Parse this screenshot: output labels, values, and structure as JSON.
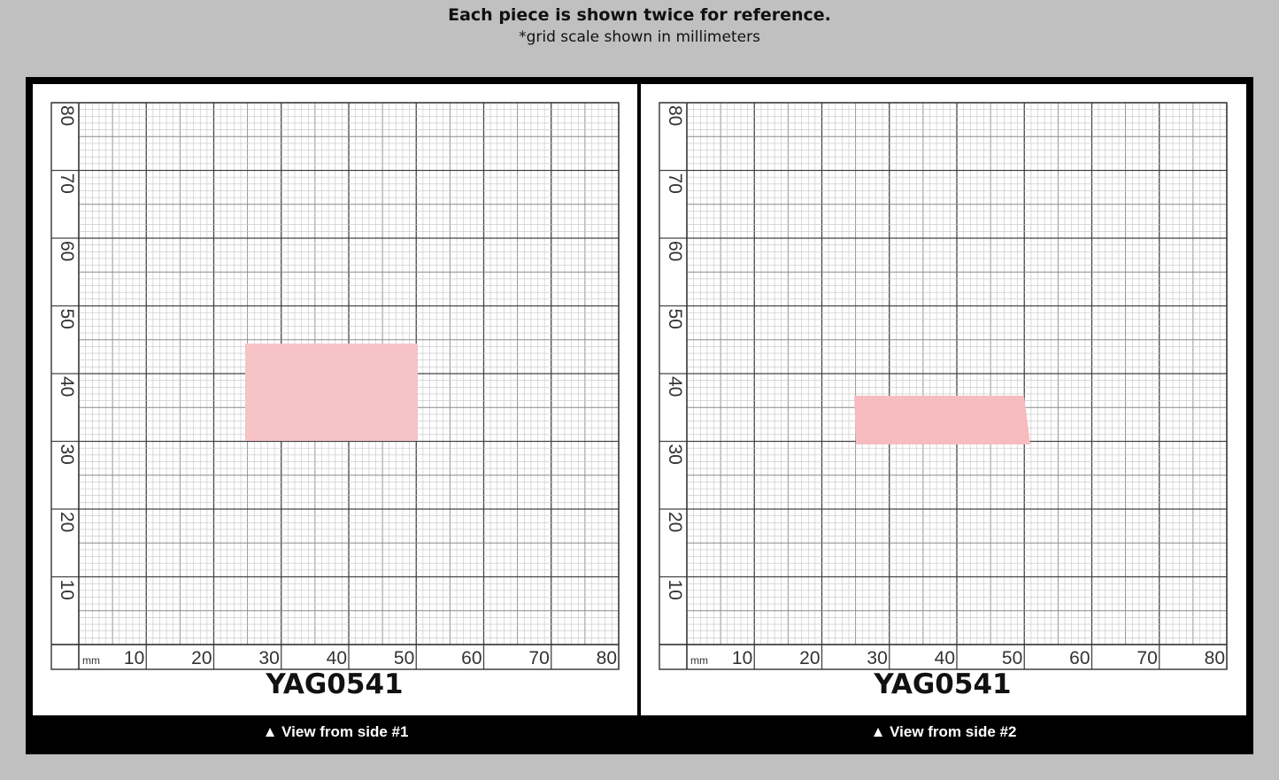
{
  "header": {
    "title": "Each piece is shown twice for reference.",
    "subtitle": "*grid scale shown in millimeters"
  },
  "panels": [
    {
      "sample": "YAG0541",
      "caption": "▲ View from side #1",
      "unit": "mm",
      "x_labels": [
        10,
        20,
        30,
        40,
        50,
        60,
        70,
        80
      ],
      "y_labels": [
        10,
        20,
        30,
        40,
        50,
        60,
        70,
        80
      ]
    },
    {
      "sample": "YAG0541",
      "caption": "▲ View from side #2",
      "unit": "mm",
      "x_labels": [
        10,
        20,
        30,
        40,
        50,
        60,
        70,
        80
      ],
      "y_labels": [
        10,
        20,
        30,
        40,
        50,
        60,
        70,
        80
      ]
    }
  ]
}
